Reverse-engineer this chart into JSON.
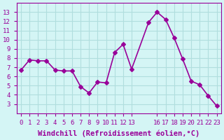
{
  "x": [
    0,
    1,
    2,
    3,
    4,
    5,
    6,
    7,
    8,
    9,
    10,
    11,
    12,
    13,
    15,
    16,
    17,
    18,
    19,
    20,
    21,
    22,
    23
  ],
  "y": [
    6.7,
    7.8,
    7.7,
    7.7,
    6.7,
    6.6,
    6.6,
    4.9,
    4.2,
    5.4,
    5.3,
    8.6,
    9.5,
    6.8,
    11.9,
    13.0,
    12.2,
    10.2,
    7.9,
    5.5,
    5.1,
    3.9,
    2.8
  ],
  "line_color": "#990099",
  "marker": "D",
  "marker_size": 3,
  "bg_color": "#d4f5f5",
  "grid_color": "#b0dede",
  "xlabel": "Windchill (Refroidissement éolien,°C)",
  "xlabel_color": "#990099",
  "tick_color": "#990099",
  "ylim": [
    2,
    14
  ],
  "xlim": [
    -0.5,
    23.5
  ],
  "yticks": [
    3,
    4,
    5,
    6,
    7,
    8,
    9,
    10,
    11,
    12,
    13
  ],
  "xticks": [
    0,
    1,
    2,
    3,
    4,
    5,
    6,
    7,
    8,
    9,
    10,
    11,
    12,
    13,
    16,
    17,
    18,
    19,
    20,
    21,
    22,
    23
  ],
  "figsize": [
    3.2,
    2.0
  ],
  "dpi": 100,
  "line_width": 1.2
}
